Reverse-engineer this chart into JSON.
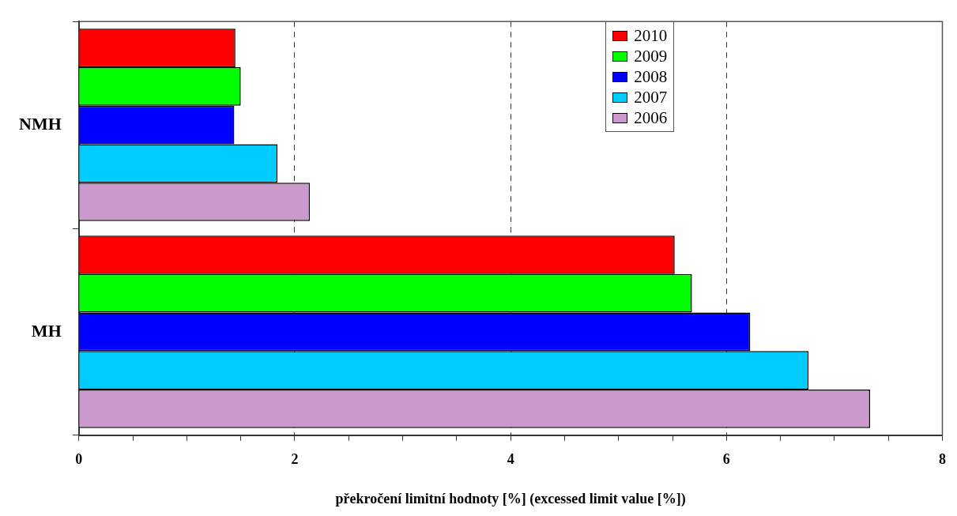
{
  "chart_data": {
    "type": "bar",
    "orientation": "horizontal",
    "xlabel": "překročení limitní hodnoty [%] (excessed limit value [%])",
    "categories": [
      "NMH",
      "MH"
    ],
    "series": [
      {
        "name": "2010",
        "color": "#ff0000",
        "values": [
          1.45,
          5.52
        ]
      },
      {
        "name": "2009",
        "color": "#00ff00",
        "values": [
          1.5,
          5.68
        ]
      },
      {
        "name": "2008",
        "color": "#0000ff",
        "values": [
          1.44,
          6.22
        ]
      },
      {
        "name": "2007",
        "color": "#00ccff",
        "values": [
          1.84,
          6.76
        ]
      },
      {
        "name": "2006",
        "color": "#cc99cc",
        "values": [
          2.14,
          7.33
        ]
      }
    ],
    "xlim": [
      0,
      8
    ],
    "xticks": [
      0,
      {
        "value": 0.5,
        "label": null
      },
      {
        "value": 1,
        "label": null
      },
      {
        "value": 1.5,
        "label": null
      },
      2,
      {
        "value": 2.5,
        "label": null
      },
      {
        "value": 3,
        "label": null
      },
      {
        "value": 3.5,
        "label": null
      },
      4,
      {
        "value": 4.5,
        "label": null
      },
      {
        "value": 5,
        "label": null
      },
      {
        "value": 5.5,
        "label": null
      },
      6,
      {
        "value": 6.5,
        "label": null
      },
      {
        "value": 7,
        "label": null
      },
      {
        "value": 7.5,
        "label": null
      },
      8
    ],
    "grid": "x",
    "legend": "top right"
  }
}
